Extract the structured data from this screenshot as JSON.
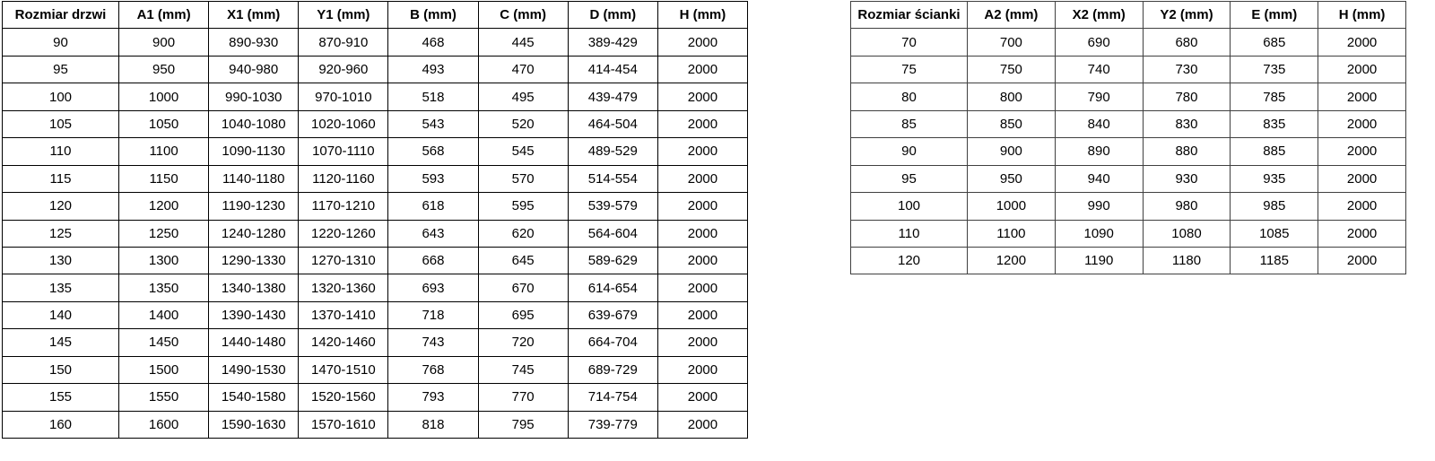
{
  "door_table": {
    "headers": [
      "Rozmiar drzwi",
      "A1 (mm)",
      "X1 (mm)",
      "Y1 (mm)",
      "B (mm)",
      "C (mm)",
      "D (mm)",
      "H (mm)"
    ],
    "rows": [
      [
        "90",
        "900",
        "890-930",
        "870-910",
        "468",
        "445",
        "389-429",
        "2000"
      ],
      [
        "95",
        "950",
        "940-980",
        "920-960",
        "493",
        "470",
        "414-454",
        "2000"
      ],
      [
        "100",
        "1000",
        "990-1030",
        "970-1010",
        "518",
        "495",
        "439-479",
        "2000"
      ],
      [
        "105",
        "1050",
        "1040-1080",
        "1020-1060",
        "543",
        "520",
        "464-504",
        "2000"
      ],
      [
        "110",
        "1100",
        "1090-1130",
        "1070-1110",
        "568",
        "545",
        "489-529",
        "2000"
      ],
      [
        "115",
        "1150",
        "1140-1180",
        "1120-1160",
        "593",
        "570",
        "514-554",
        "2000"
      ],
      [
        "120",
        "1200",
        "1190-1230",
        "1170-1210",
        "618",
        "595",
        "539-579",
        "2000"
      ],
      [
        "125",
        "1250",
        "1240-1280",
        "1220-1260",
        "643",
        "620",
        "564-604",
        "2000"
      ],
      [
        "130",
        "1300",
        "1290-1330",
        "1270-1310",
        "668",
        "645",
        "589-629",
        "2000"
      ],
      [
        "135",
        "1350",
        "1340-1380",
        "1320-1360",
        "693",
        "670",
        "614-654",
        "2000"
      ],
      [
        "140",
        "1400",
        "1390-1430",
        "1370-1410",
        "718",
        "695",
        "639-679",
        "2000"
      ],
      [
        "145",
        "1450",
        "1440-1480",
        "1420-1460",
        "743",
        "720",
        "664-704",
        "2000"
      ],
      [
        "150",
        "1500",
        "1490-1530",
        "1470-1510",
        "768",
        "745",
        "689-729",
        "2000"
      ],
      [
        "155",
        "1550",
        "1540-1580",
        "1520-1560",
        "793",
        "770",
        "714-754",
        "2000"
      ],
      [
        "160",
        "1600",
        "1590-1630",
        "1570-1610",
        "818",
        "795",
        "739-779",
        "2000"
      ]
    ]
  },
  "panel_table": {
    "headers": [
      "Rozmiar ścianki",
      "A2 (mm)",
      "X2 (mm)",
      "Y2 (mm)",
      "E (mm)",
      "H (mm)"
    ],
    "rows": [
      [
        "70",
        "700",
        "690",
        "680",
        "685",
        "2000"
      ],
      [
        "75",
        "750",
        "740",
        "730",
        "735",
        "2000"
      ],
      [
        "80",
        "800",
        "790",
        "780",
        "785",
        "2000"
      ],
      [
        "85",
        "850",
        "840",
        "830",
        "835",
        "2000"
      ],
      [
        "90",
        "900",
        "890",
        "880",
        "885",
        "2000"
      ],
      [
        "95",
        "950",
        "940",
        "930",
        "935",
        "2000"
      ],
      [
        "100",
        "1000",
        "990",
        "980",
        "985",
        "2000"
      ],
      [
        "110",
        "1100",
        "1090",
        "1080",
        "1085",
        "2000"
      ],
      [
        "120",
        "1200",
        "1190",
        "1180",
        "1185",
        "2000"
      ]
    ]
  },
  "colors": {
    "background": "#ffffff",
    "table_border": "#000000",
    "text": "#000000"
  }
}
